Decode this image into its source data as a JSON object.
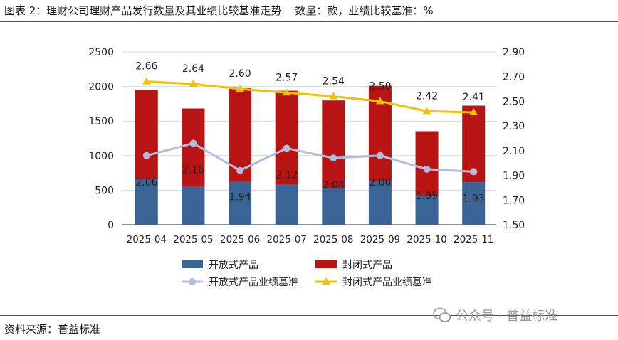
{
  "title": "图表 2：理财公司理财产品发行数量及其业绩比较基准走势    数量：款，业绩比较基准：%",
  "source": "资料来源：普益标准",
  "watermark": {
    "text": "公众号 · 普益标准",
    "icon": "wechat-icon"
  },
  "chart_data": {
    "type": "bar+line",
    "categories": [
      "2025-04",
      "2025-05",
      "2025-06",
      "2025-07",
      "2025-08",
      "2025-09",
      "2025-10",
      "2025-11"
    ],
    "left_axis": {
      "ylim": [
        0,
        2500
      ],
      "ticks": [
        "0",
        "500",
        "1000",
        "1500",
        "2000",
        "2500"
      ]
    },
    "right_axis": {
      "ylim": [
        1.5,
        2.9
      ],
      "ticks": [
        "1.50",
        "1.70",
        "1.90",
        "2.10",
        "2.30",
        "2.50",
        "2.70",
        "2.90"
      ]
    },
    "grid": true,
    "legend_placement": "bottom",
    "series": [
      {
        "name": "开放式产品",
        "type": "stacked-bar",
        "axis": "left",
        "color": "#3a6496",
        "values": [
          664,
          548,
          623,
          582,
          531,
          634,
          418,
          616
        ]
      },
      {
        "name": "封闭式产品",
        "type": "stacked-bar",
        "axis": "left",
        "color": "#b81414",
        "values": [
          1285,
          1134,
          1353,
          1356,
          1267,
          1376,
          935,
          1107
        ]
      },
      {
        "name": "开放式产品业绩基准",
        "type": "line",
        "axis": "right",
        "color": "#b4bcdc",
        "marker": "circle",
        "values": [
          2.06,
          2.16,
          1.94,
          2.12,
          2.04,
          2.06,
          1.95,
          1.93
        ],
        "labels": [
          "2.06",
          "2.16",
          "1.94",
          "2.12",
          "2.04",
          "2.06",
          "1.95",
          "1.93"
        ]
      },
      {
        "name": "封闭式产品业绩基准",
        "type": "line",
        "axis": "right",
        "color": "#f5c000",
        "marker": "triangle",
        "values": [
          2.66,
          2.64,
          2.6,
          2.57,
          2.54,
          2.5,
          2.42,
          2.41
        ],
        "labels": [
          "2.66",
          "2.64",
          "2.60",
          "2.57",
          "2.54",
          "2.50",
          "2.42",
          "2.41"
        ]
      }
    ]
  }
}
